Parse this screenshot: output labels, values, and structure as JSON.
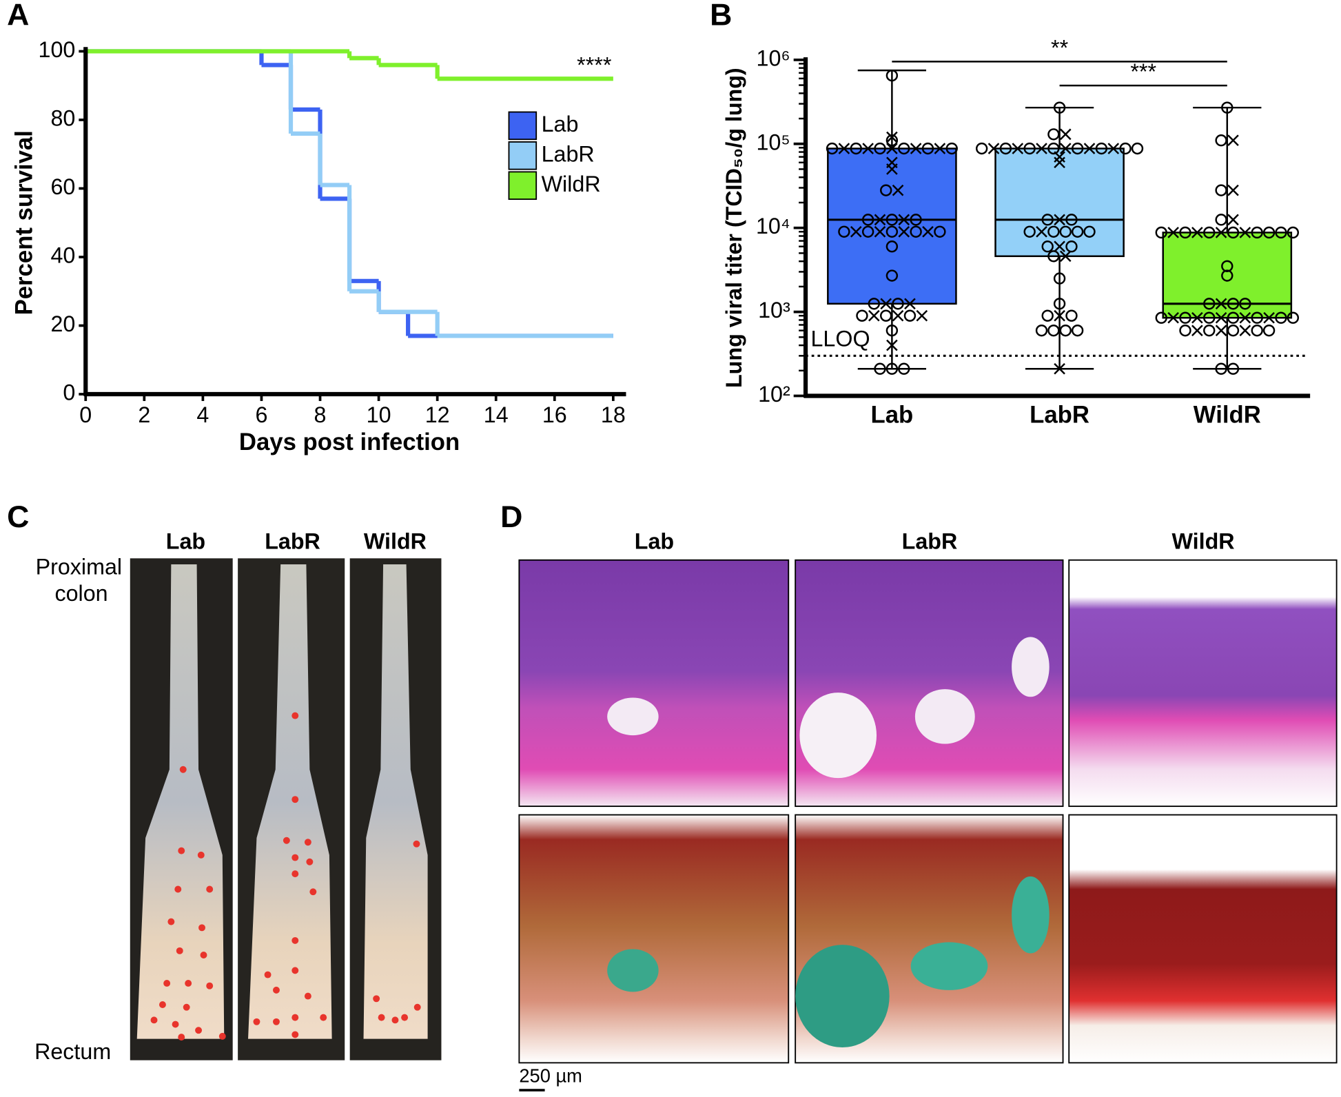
{
  "chart_data": [
    {
      "type": "step",
      "label": "A",
      "xlabel": "Days post infection",
      "ylabel": "Percent survival",
      "xlim": [
        0,
        18
      ],
      "ylim": [
        0,
        100
      ],
      "xticks": [
        0,
        2,
        4,
        6,
        8,
        10,
        12,
        14,
        16,
        18
      ],
      "yticks": [
        0,
        20,
        40,
        60,
        80,
        100
      ],
      "annotation": "****",
      "series": [
        {
          "name": "Lab",
          "color": "#3d63f2",
          "x": [
            0,
            6,
            7,
            8,
            9,
            10,
            11,
            18
          ],
          "values": [
            100,
            96,
            83,
            57,
            33,
            24,
            17,
            17
          ]
        },
        {
          "name": "LabR",
          "color": "#93cdf6",
          "x": [
            0,
            7,
            8,
            9,
            10,
            12,
            18
          ],
          "values": [
            100,
            76,
            61,
            30,
            24,
            17,
            17
          ]
        },
        {
          "name": "WildR",
          "color": "#7ff02c",
          "x": [
            0,
            9,
            10,
            12,
            18
          ],
          "values": [
            100,
            98,
            96,
            92,
            92
          ]
        }
      ]
    },
    {
      "type": "box",
      "label": "B",
      "ylabel": "Lung viral titer (TCID₅₀/g lung)",
      "log": true,
      "ylim": [
        100,
        1000000
      ],
      "yticks": [
        {
          "value": 100,
          "label": "10²"
        },
        {
          "value": 1000,
          "label": "10³"
        },
        {
          "value": 10000,
          "label": "10⁴"
        },
        {
          "value": 100000,
          "label": "10⁵"
        },
        {
          "value": 1000000,
          "label": "10⁶"
        }
      ],
      "lloq": {
        "label": "LLOQ",
        "value": 300
      },
      "comparisons": [
        {
          "label": "**",
          "groups": [
            "Lab",
            "WildR"
          ]
        },
        {
          "label": "***",
          "groups": [
            "LabR",
            "WildR"
          ]
        }
      ],
      "groups": [
        {
          "name": "Lab",
          "color": "#3d6ef5",
          "min": 210,
          "q1": 1250,
          "median": 12500,
          "q3": 88000,
          "max": 750000,
          "circles": [
            650000,
            110000,
            88000,
            88000,
            88000,
            88000,
            88000,
            88000,
            28000,
            12500,
            12500,
            12500,
            9000,
            9000,
            9000,
            9000,
            9000,
            6000,
            2700,
            1250,
            1250,
            900,
            900,
            900,
            600,
            210,
            210,
            210
          ],
          "crosses": [
            120000,
            88000,
            88000,
            88000,
            88000,
            88000,
            60000,
            50000,
            28000,
            12500,
            12500,
            9000,
            9000,
            9000,
            9000,
            1250,
            1250,
            900,
            900,
            900,
            400
          ]
        },
        {
          "name": "LabR",
          "color": "#93d0f8",
          "min": 210,
          "q1": 4600,
          "median": 12500,
          "q3": 88000,
          "max": 270000,
          "circles": [
            270000,
            130000,
            88000,
            88000,
            88000,
            88000,
            88000,
            88000,
            88000,
            88000,
            12500,
            12500,
            9000,
            9000,
            9000,
            9000,
            9000,
            6000,
            6000,
            4600,
            2500,
            1250,
            900,
            900,
            600,
            600,
            600,
            600
          ],
          "crosses": [
            130000,
            88000,
            88000,
            88000,
            88000,
            88000,
            88000,
            70000,
            60000,
            12500,
            9000,
            6000,
            4600,
            900,
            210
          ]
        },
        {
          "name": "WildR",
          "color": "#7ff02c",
          "min": 210,
          "q1": 850,
          "median": 1250,
          "q3": 8800,
          "max": 270000,
          "circles": [
            270000,
            110000,
            28000,
            12500,
            8800,
            8800,
            8800,
            8800,
            8800,
            8800,
            8800,
            8800,
            3500,
            2700,
            1250,
            1250,
            1250,
            850,
            850,
            850,
            850,
            850,
            850,
            850,
            600,
            600,
            600,
            600,
            600,
            210,
            210
          ],
          "crosses": [
            110000,
            28000,
            12500,
            8800,
            8800,
            8800,
            8800,
            1250,
            850,
            850,
            850,
            850,
            850,
            600,
            600,
            600
          ]
        }
      ]
    }
  ],
  "panel_c": {
    "label": "C",
    "columns": [
      "Lab",
      "LabR",
      "WildR"
    ],
    "top_label": [
      "Proximal",
      "colon"
    ],
    "bottom_label": "Rectum"
  },
  "panel_d": {
    "label": "D",
    "columns": [
      "Lab",
      "LabR",
      "WildR"
    ],
    "scale_bar": "250 µm"
  }
}
